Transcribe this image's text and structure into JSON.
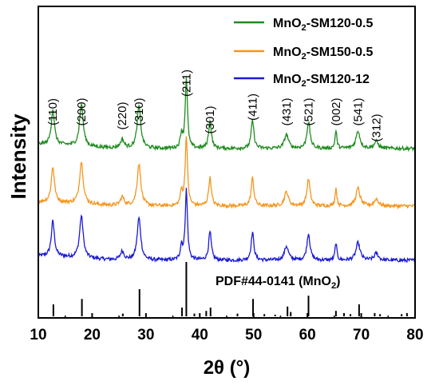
{
  "chart_data": {
    "type": "line",
    "xlabel": "2θ (°)",
    "ylabel": "Intensity",
    "xlim": [
      10,
      80
    ],
    "xticks": [
      "10",
      "20",
      "30",
      "40",
      "50",
      "60",
      "70",
      "80"
    ],
    "legend_position": "top-right",
    "series": [
      {
        "name": "MnO2-SM120-12",
        "color": "#1a1ad6",
        "offset": 0
      },
      {
        "name": "MnO2-SM150-0.5",
        "color": "#f5961e",
        "offset": 1
      },
      {
        "name": "MnO2-SM120-0.5",
        "color": "#1f8c1f",
        "offset": 2
      }
    ],
    "peaks": [
      {
        "pos": 12.7,
        "h": 0.5,
        "w": 0.7
      },
      {
        "pos": 18.0,
        "h": 0.6,
        "w": 0.8
      },
      {
        "pos": 25.6,
        "h": 0.12,
        "w": 0.8
      },
      {
        "pos": 28.7,
        "h": 0.6,
        "w": 0.8
      },
      {
        "pos": 36.6,
        "h": 0.2,
        "w": 0.5
      },
      {
        "pos": 37.5,
        "h": 1.0,
        "w": 0.5
      },
      {
        "pos": 41.9,
        "h": 0.4,
        "w": 0.6
      },
      {
        "pos": 49.8,
        "h": 0.4,
        "w": 0.6
      },
      {
        "pos": 56.1,
        "h": 0.2,
        "w": 0.9
      },
      {
        "pos": 60.2,
        "h": 0.38,
        "w": 0.7
      },
      {
        "pos": 65.3,
        "h": 0.25,
        "w": 0.4
      },
      {
        "pos": 69.4,
        "h": 0.25,
        "w": 0.9
      },
      {
        "pos": 72.8,
        "h": 0.1,
        "w": 0.9
      }
    ],
    "peak_labels": [
      {
        "text": "(110)",
        "x": 12.7
      },
      {
        "text": "(200)",
        "x": 18.0
      },
      {
        "text": "(220)",
        "x": 25.6
      },
      {
        "text": "(310)",
        "x": 28.7
      },
      {
        "text": "(211)",
        "x": 37.5
      },
      {
        "text": "(301)",
        "x": 41.9
      },
      {
        "text": "(411)",
        "x": 49.8
      },
      {
        "text": "(431)",
        "x": 56.1
      },
      {
        "text": "(521)",
        "x": 60.2
      },
      {
        "text": "(002)",
        "x": 65.3
      },
      {
        "text": "(541)",
        "x": 69.4
      },
      {
        "text": "(312)",
        "x": 72.8
      }
    ],
    "reference": {
      "label": "PDF#44-0141 (MnO2)",
      "color": "#000000",
      "lines": [
        {
          "x": 12.8,
          "h": 0.22
        },
        {
          "x": 18.1,
          "h": 0.32
        },
        {
          "x": 25.7,
          "h": 0.05
        },
        {
          "x": 28.8,
          "h": 0.5
        },
        {
          "x": 36.7,
          "h": 0.16
        },
        {
          "x": 37.5,
          "h": 1.0
        },
        {
          "x": 39.0,
          "h": 0.05
        },
        {
          "x": 41.2,
          "h": 0.1
        },
        {
          "x": 42.0,
          "h": 0.16
        },
        {
          "x": 47.0,
          "h": 0.05
        },
        {
          "x": 49.9,
          "h": 0.32
        },
        {
          "x": 52.0,
          "h": 0.04
        },
        {
          "x": 54.0,
          "h": 0.03
        },
        {
          "x": 56.3,
          "h": 0.18
        },
        {
          "x": 56.9,
          "h": 0.08
        },
        {
          "x": 60.2,
          "h": 0.38
        },
        {
          "x": 65.3,
          "h": 0.1
        },
        {
          "x": 66.8,
          "h": 0.06
        },
        {
          "x": 68.0,
          "h": 0.04
        },
        {
          "x": 69.6,
          "h": 0.22
        },
        {
          "x": 72.5,
          "h": 0.06
        },
        {
          "x": 73.5,
          "h": 0.04
        },
        {
          "x": 77.5,
          "h": 0.04
        },
        {
          "x": 78.5,
          "h": 0.06
        }
      ]
    }
  }
}
